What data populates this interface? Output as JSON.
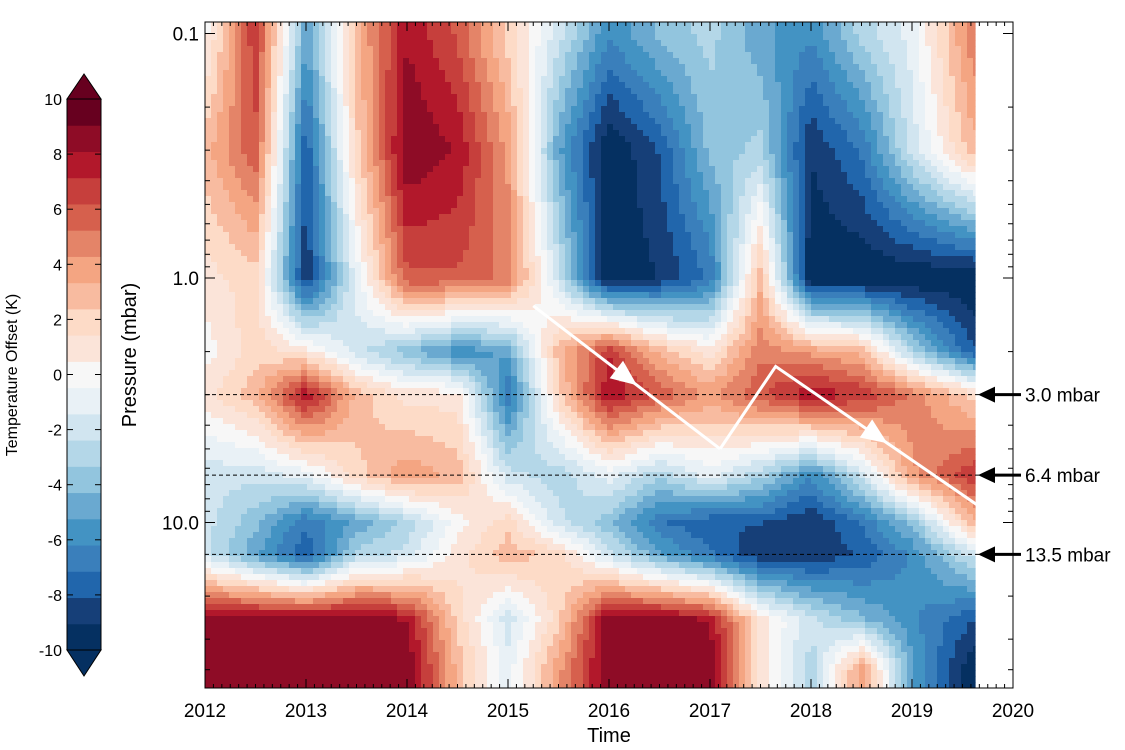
{
  "chart_data": {
    "type": "heatmap",
    "title": "",
    "xlabel": "Time",
    "ylabel": "Pressure (mbar)",
    "x_ticks": [
      "2012",
      "2013",
      "2014",
      "2015",
      "2016",
      "2017",
      "2018",
      "2019",
      "2020"
    ],
    "x_tick_values": [
      2012,
      2013,
      2014,
      2015,
      2016,
      2017,
      2018,
      2019,
      2020
    ],
    "xlim": [
      2012,
      2020
    ],
    "y_scale": "log",
    "y_ticks": [
      "0.1",
      "1.0",
      "10.0"
    ],
    "y_tick_values": [
      0.1,
      1.0,
      10.0
    ],
    "ylim": [
      0.1,
      40
    ],
    "colorbar": {
      "label": "Temperature Offset (K)",
      "ticks": [
        "10",
        "8",
        "6",
        "4",
        "2",
        "0",
        "-2",
        "-4",
        "-6",
        "-8",
        "-10"
      ],
      "tick_values": [
        10,
        8,
        6,
        4,
        2,
        0,
        -2,
        -4,
        -6,
        -8,
        -10
      ],
      "range": [
        -10,
        10
      ],
      "extend": "both",
      "colors": [
        "#053061",
        "#163f78",
        "#2166ac",
        "#3a7fbb",
        "#4393c3",
        "#6aa9d0",
        "#92c5de",
        "#b4d7e8",
        "#d1e5f0",
        "#e9f1f6",
        "#f7f7f7",
        "#fbe4d9",
        "#fddbc7",
        "#f8bba0",
        "#f4a582",
        "#e48468",
        "#d6604d",
        "#c63f3c",
        "#b2182b",
        "#8e0c26",
        "#67001f"
      ]
    },
    "reference_levels": [
      {
        "pressure": 3.0,
        "label": "3.0 mbar"
      },
      {
        "pressure": 6.4,
        "label": "6.4 mbar"
      },
      {
        "pressure": 13.5,
        "label": "13.5 mbar"
      }
    ],
    "descent_arrows": [
      {
        "points": [
          [
            2015.25,
            1.3
          ],
          [
            2017.1,
            5.0
          ]
        ]
      },
      {
        "points": [
          [
            2017.1,
            5.0
          ],
          [
            2017.65,
            2.3
          ],
          [
            2019.65,
            8.5
          ]
        ]
      }
    ],
    "field": {
      "times": [
        2012.0,
        2012.5,
        2013.0,
        2013.5,
        2014.0,
        2014.5,
        2015.0,
        2015.5,
        2016.0,
        2016.5,
        2017.0,
        2017.5,
        2018.0,
        2018.5,
        2019.0,
        2019.6
      ],
      "pressures": [
        0.1,
        0.3,
        1.0,
        2.0,
        3.0,
        6.4,
        10.0,
        13.5,
        25.0,
        40.0
      ],
      "values": [
        [
          0,
          7,
          -5,
          3,
          8,
          6,
          2,
          -2,
          -6,
          -4,
          -3,
          -5,
          -6,
          -3,
          -1,
          5
        ],
        [
          3,
          6,
          -8,
          2,
          9,
          8,
          4,
          -5,
          -10,
          -8,
          -4,
          -3,
          -9,
          -7,
          -2,
          3
        ],
        [
          1,
          2,
          -9,
          -1,
          6,
          6,
          5,
          -2,
          -10,
          -9,
          -7,
          3,
          -10,
          -10,
          -10,
          -10
        ],
        [
          0,
          2,
          1,
          -2,
          -4,
          -6,
          -5,
          3,
          7,
          3,
          1,
          5,
          4,
          3,
          -3,
          -8
        ],
        [
          1,
          3,
          8,
          3,
          1,
          1,
          -7,
          2,
          8,
          6,
          4,
          6,
          8,
          7,
          5,
          2
        ],
        [
          -2,
          -2,
          -1,
          2,
          4,
          3,
          -2,
          -3,
          -1,
          -3,
          -1,
          -3,
          -6,
          -2,
          4,
          7
        ],
        [
          -2,
          -4,
          -7,
          -5,
          -3,
          0,
          2,
          -2,
          -4,
          -7,
          -8,
          -8,
          -9,
          -7,
          -4,
          3
        ],
        [
          -2,
          -5,
          -8,
          -3,
          -2,
          1,
          3,
          2,
          -2,
          -5,
          -7,
          -9,
          -9,
          -8,
          -6,
          -2
        ],
        [
          9,
          9,
          9,
          9,
          8,
          2,
          -2,
          2,
          9,
          9,
          8,
          1,
          -2,
          -4,
          -6,
          -8
        ],
        [
          9,
          9,
          9,
          9,
          9,
          3,
          -1,
          4,
          9,
          9,
          9,
          1,
          -3,
          4,
          -5,
          -10
        ]
      ]
    }
  }
}
